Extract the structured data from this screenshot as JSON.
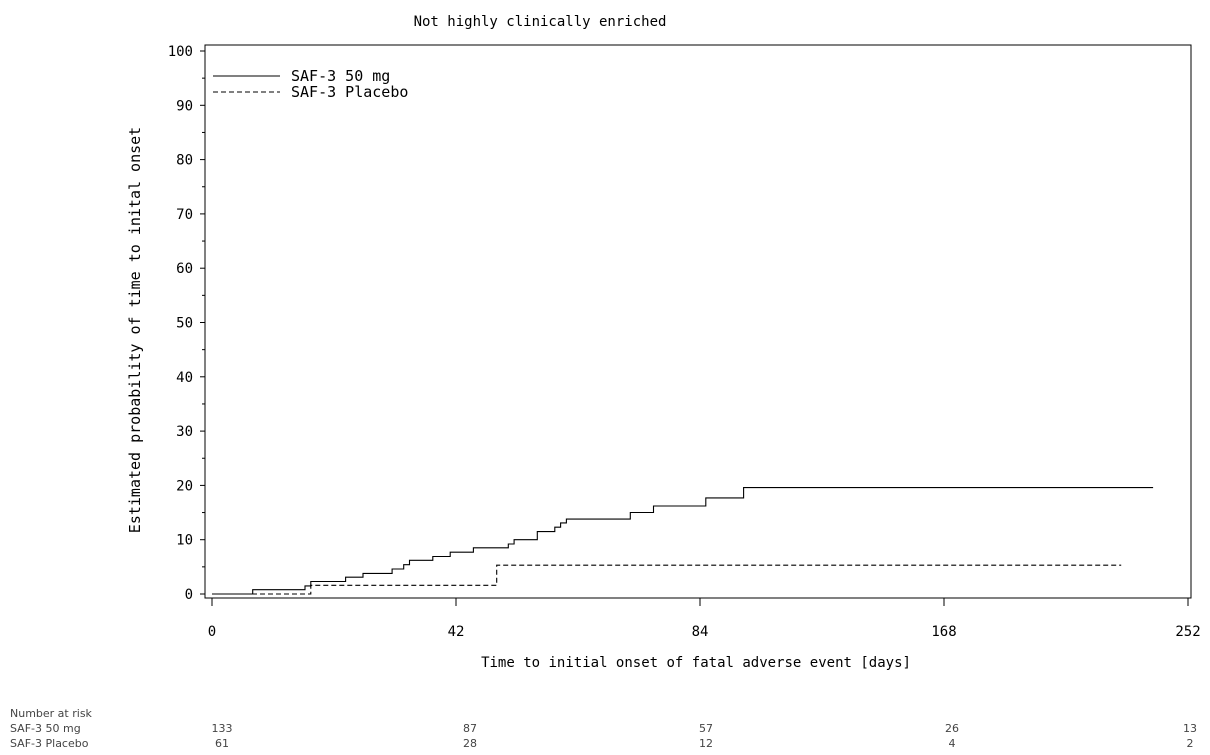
{
  "chart_data": {
    "type": "line",
    "title": "Not highly clinically enriched",
    "xlabel": "Time to initial onset of fatal adverse event [days]",
    "ylabel": "Estimated probability of time to inital onset",
    "x_ticks": [
      0,
      42,
      84,
      168,
      252
    ],
    "y_ticks": [
      0,
      10,
      20,
      30,
      40,
      50,
      60,
      70,
      80,
      90,
      100
    ],
    "ylim": [
      0,
      100
    ],
    "legend_position": "top-left",
    "grid": false,
    "series": [
      {
        "name": "SAF-3 50 mg",
        "line_style": "solid",
        "color": "#000000",
        "steps": [
          [
            0,
            0
          ],
          [
            7,
            0.8
          ],
          [
            16,
            1.5
          ],
          [
            17,
            2.3
          ],
          [
            23,
            3.1
          ],
          [
            26,
            3.8
          ],
          [
            31,
            4.6
          ],
          [
            33,
            5.4
          ],
          [
            34,
            6.2
          ],
          [
            38,
            6.9
          ],
          [
            41,
            7.7
          ],
          [
            45,
            8.5
          ],
          [
            51,
            9.2
          ],
          [
            52,
            10.0
          ],
          [
            56,
            11.5
          ],
          [
            59,
            12.3
          ],
          [
            60,
            13.1
          ],
          [
            61,
            13.8
          ],
          [
            72,
            15.0
          ],
          [
            76,
            16.2
          ],
          [
            86,
            17.7
          ],
          [
            99,
            19.6
          ],
          [
            240,
            19.6
          ]
        ]
      },
      {
        "name": "SAF-3 Placebo",
        "line_style": "dashed",
        "color": "#000000",
        "steps": [
          [
            0,
            0
          ],
          [
            11,
            0
          ],
          [
            17,
            1.6
          ],
          [
            48,
            1.6
          ],
          [
            49,
            5.3
          ],
          [
            229,
            5.3
          ]
        ]
      }
    ]
  },
  "risk_table": {
    "label": "Number at risk",
    "rows": [
      {
        "name": "SAF-3 50 mg",
        "values": [
          "133",
          "87",
          "57",
          "26",
          "13"
        ]
      },
      {
        "name": "SAF-3 Placebo",
        "values": [
          "61",
          "28",
          "12",
          "4",
          "2"
        ]
      }
    ]
  }
}
